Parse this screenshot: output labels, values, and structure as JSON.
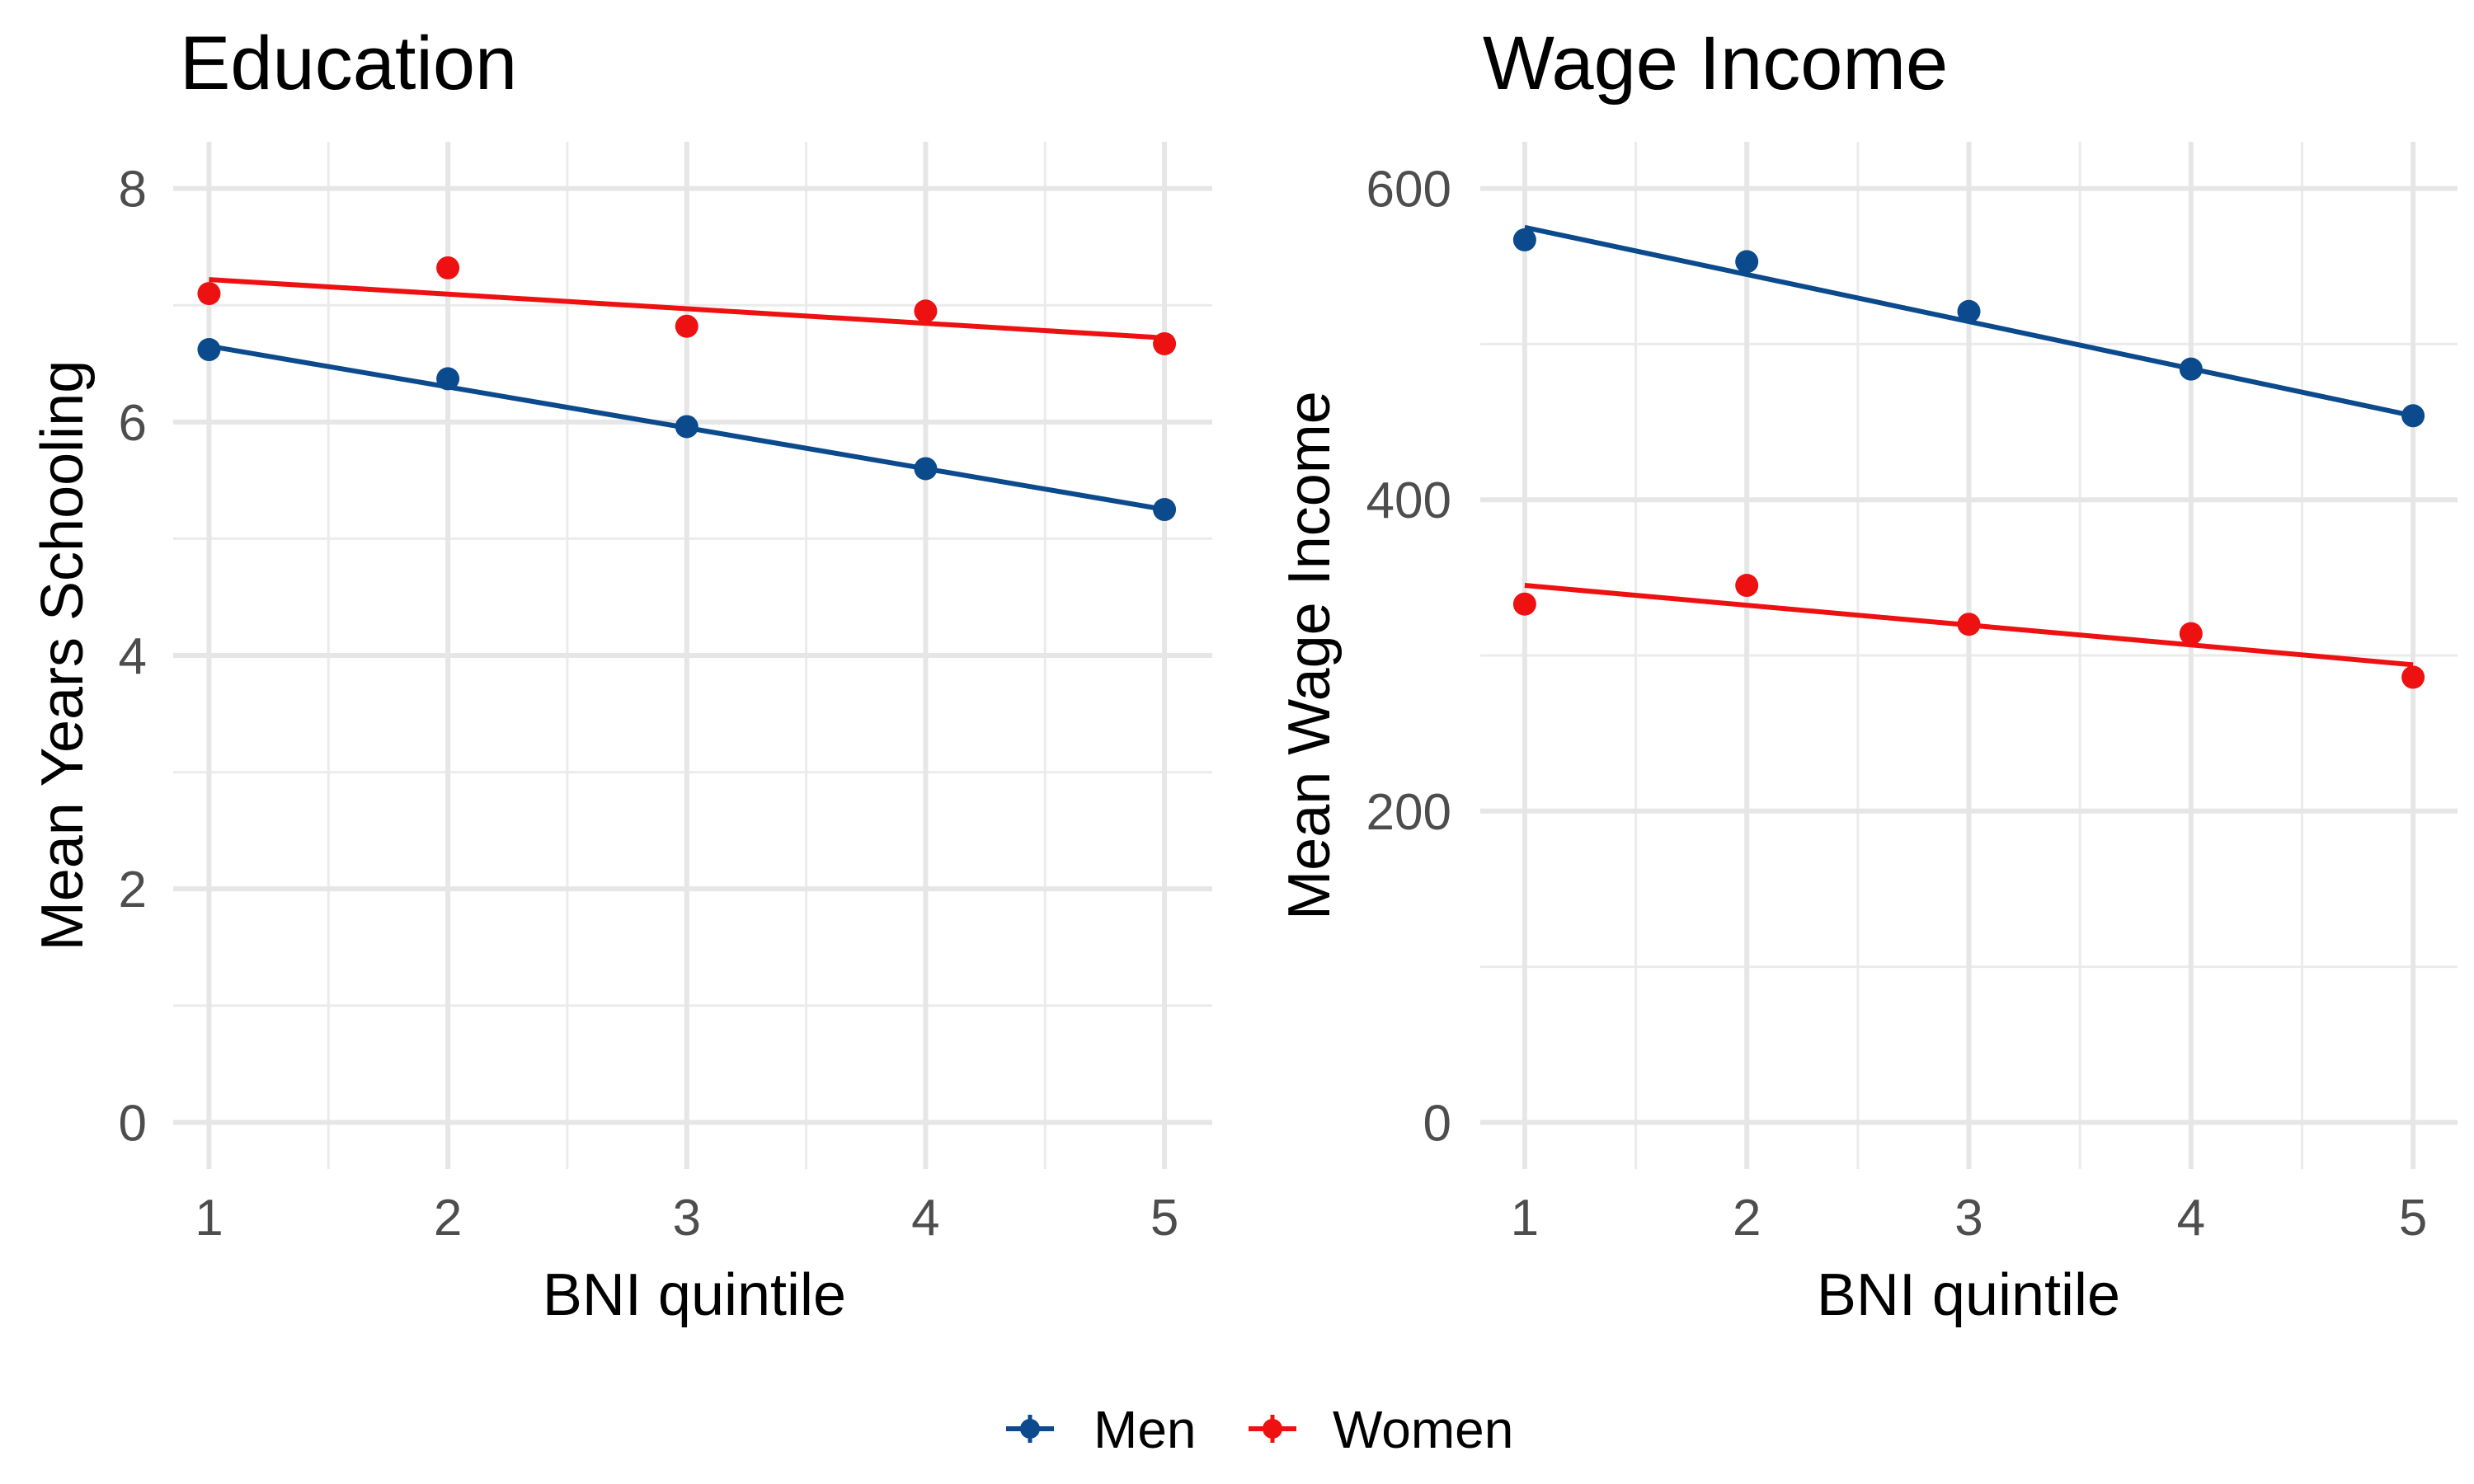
{
  "chart_data": [
    {
      "type": "line",
      "title": "Education",
      "xlabel": "BNI quintile",
      "ylabel": "Mean Years Schooling",
      "x": [
        1,
        2,
        3,
        4,
        5
      ],
      "xticks": [
        "1",
        "2",
        "3",
        "4",
        "5"
      ],
      "xlim": [
        0.85,
        5.2
      ],
      "ylim": [
        -0.4,
        8.4
      ],
      "yticks": [
        0,
        2,
        4,
        6,
        8
      ],
      "yticklabels": [
        "0",
        "2",
        "4",
        "6",
        "8"
      ],
      "grid": true,
      "series": [
        {
          "name": "Men",
          "color": "#0b4a8c",
          "points": [
            6.62,
            6.37,
            5.96,
            5.6,
            5.25
          ],
          "fit": [
            6.65,
            5.25
          ]
        },
        {
          "name": "Women",
          "color": "#ee1111",
          "points": [
            7.1,
            7.32,
            6.82,
            6.95,
            6.67
          ],
          "fit": [
            7.22,
            6.72
          ]
        }
      ]
    },
    {
      "type": "line",
      "title": "Wage Income",
      "xlabel": "BNI quintile",
      "ylabel": "Mean Wage Income",
      "x": [
        1,
        2,
        3,
        4,
        5
      ],
      "xticks": [
        "1",
        "2",
        "3",
        "4",
        "5"
      ],
      "xlim": [
        0.8,
        5.2
      ],
      "ylim": [
        -30,
        630
      ],
      "yticks": [
        0,
        200,
        400,
        600
      ],
      "yticklabels": [
        "0",
        "200",
        "400",
        "600"
      ],
      "grid": true,
      "series": [
        {
          "name": "Men",
          "color": "#0b4a8c",
          "points": [
            567,
            553,
            521,
            484,
            454
          ],
          "fit": [
            575,
            454
          ]
        },
        {
          "name": "Women",
          "color": "#ee1111",
          "points": [
            333,
            345,
            320,
            314,
            286
          ],
          "fit": [
            345,
            294
          ]
        }
      ]
    }
  ],
  "legend": {
    "placement": "bottom",
    "items": [
      {
        "label": "Men",
        "color": "#0b4a8c"
      },
      {
        "label": "Women",
        "color": "#ee1111"
      }
    ]
  }
}
